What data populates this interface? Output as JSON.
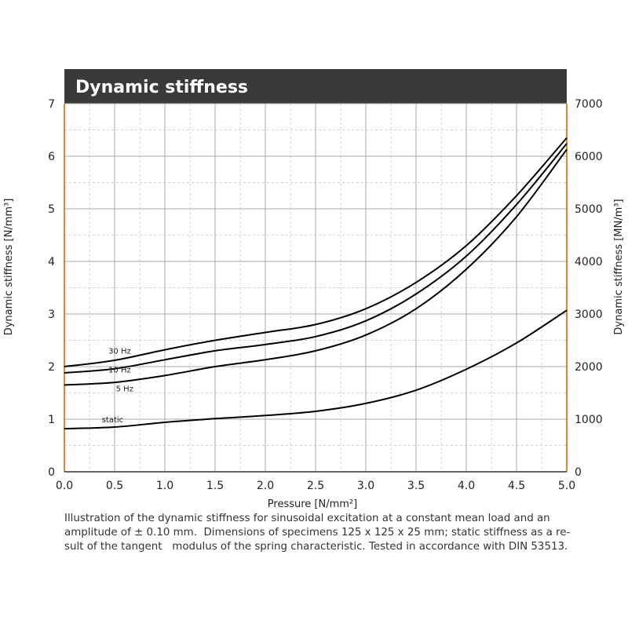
{
  "chart_data": {
    "type": "line",
    "title": "Dynamic stiffness",
    "xlabel": "Pressure [N/mm²]",
    "ylabel": "Dynamic stiffness   [N/mm³]",
    "y2label": "Dynamic stiffness   [MN/m³]",
    "xlim": [
      0,
      5
    ],
    "ylim": [
      0,
      7
    ],
    "y2lim": [
      0,
      7000
    ],
    "x_ticks": [
      "0.0",
      "0.5",
      "1.0",
      "1.5",
      "2.0",
      "2.5",
      "3.0",
      "3.5",
      "4.0",
      "4.5",
      "5.0"
    ],
    "y_ticks": [
      "0",
      "1",
      "2",
      "3",
      "4",
      "5",
      "6",
      "7"
    ],
    "y2_ticks": [
      "0",
      "1000",
      "2000",
      "3000",
      "4000",
      "5000",
      "6000",
      "7000"
    ],
    "grid": true,
    "colors": {
      "title_bar": "#3a3a3a",
      "frame": "#e08a1e",
      "grid": "#aaaaaa",
      "line": "#000000"
    },
    "series": [
      {
        "name": "30 Hz",
        "x": [
          0.0,
          0.5,
          1.0,
          1.5,
          2.0,
          2.5,
          3.0,
          3.5,
          4.0,
          4.5,
          5.0
        ],
        "y": [
          2.0,
          2.12,
          2.32,
          2.5,
          2.65,
          2.8,
          3.1,
          3.6,
          4.3,
          5.25,
          6.35
        ]
      },
      {
        "name": "10 Hz",
        "x": [
          0.0,
          0.5,
          1.0,
          1.5,
          2.0,
          2.5,
          3.0,
          3.5,
          4.0,
          4.5,
          5.0
        ],
        "y": [
          1.88,
          1.96,
          2.13,
          2.3,
          2.42,
          2.57,
          2.87,
          3.38,
          4.1,
          5.08,
          6.24
        ]
      },
      {
        "name": "5 Hz",
        "x": [
          0.0,
          0.5,
          1.0,
          1.5,
          2.0,
          2.5,
          3.0,
          3.5,
          4.0,
          4.5,
          5.0
        ],
        "y": [
          1.65,
          1.7,
          1.83,
          2.0,
          2.13,
          2.3,
          2.6,
          3.1,
          3.85,
          4.85,
          6.13
        ]
      },
      {
        "name": "static",
        "x": [
          0.0,
          0.5,
          1.0,
          1.5,
          2.0,
          2.5,
          3.0,
          3.5,
          4.0,
          4.5,
          5.0
        ],
        "y": [
          0.82,
          0.85,
          0.94,
          1.01,
          1.07,
          1.15,
          1.3,
          1.55,
          1.95,
          2.45,
          3.07
        ]
      }
    ]
  },
  "caption": {
    "line1": "Illustration of the dynamic stiffness for sinusoidal excitation at a constant mean load and an",
    "line2": "amplitude of ± 0.10 mm.  Dimensions of specimens 125 x 125 x 25 mm; static stiffness as a re-",
    "line3": "sult of the tangent   modulus of the spring characteristic. Tested in accordance with DIN 53513."
  }
}
